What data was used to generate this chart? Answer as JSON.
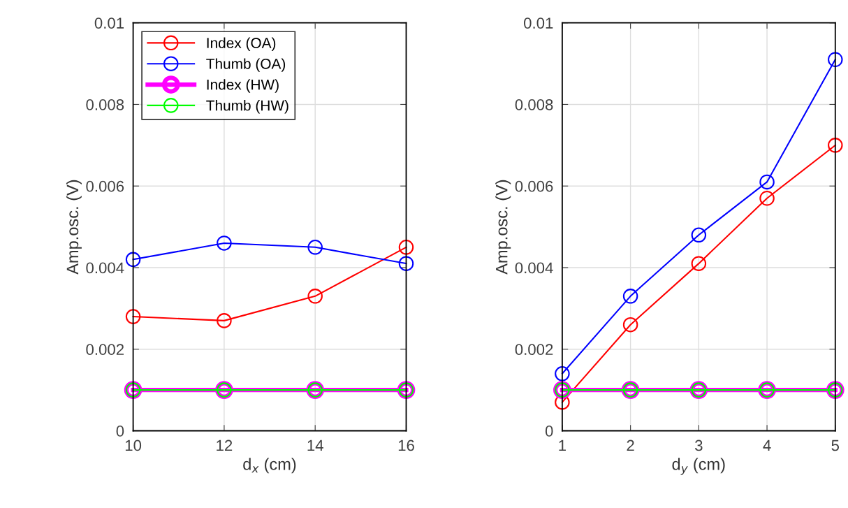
{
  "chart_data": [
    {
      "type": "line",
      "xlabel": "d$_{x}$ (cm)",
      "ylabel": "Amp.osc. (V)",
      "x": [
        10,
        12,
        14,
        16
      ],
      "xlim": [
        10,
        16
      ],
      "xticks": [
        10,
        12,
        14,
        16
      ],
      "ylim": [
        0,
        0.01
      ],
      "yticks": [
        0,
        0.002,
        0.004,
        0.006,
        0.008,
        0.01
      ],
      "grid": true,
      "legend": "top left",
      "marker": "circle",
      "line_style": "solid",
      "series": [
        {
          "name": "Index (OA)",
          "color": "#ff0000",
          "values": [
            0.0028,
            0.0027,
            0.0033,
            0.0045
          ]
        },
        {
          "name": "Thumb (OA)",
          "color": "#0000ff",
          "values": [
            0.0042,
            0.0046,
            0.0045,
            0.0041
          ]
        },
        {
          "name": "Index (HW)",
          "color": "#ff00ff",
          "values": [
            0.001,
            0.001,
            0.001,
            0.001
          ]
        },
        {
          "name": "Thumb (HW)",
          "color": "#00ff00",
          "values": [
            0.001,
            0.001,
            0.001,
            0.001
          ]
        }
      ]
    },
    {
      "type": "line",
      "xlabel": "d$_{y}$ (cm)",
      "ylabel": "Amp.osc. (V)",
      "x": [
        1,
        2,
        3,
        4,
        5
      ],
      "xlim": [
        1,
        5
      ],
      "xticks": [
        1,
        2,
        3,
        4,
        5
      ],
      "ylim": [
        0,
        0.01
      ],
      "yticks": [
        0,
        0.002,
        0.004,
        0.006,
        0.008,
        0.01
      ],
      "grid": true,
      "marker": "circle",
      "line_style": "solid",
      "series": [
        {
          "color": "#ff0000",
          "values": [
            0.0007,
            0.0026,
            0.0041,
            0.0057,
            0.007
          ]
        },
        {
          "color": "#0000ff",
          "values": [
            0.0014,
            0.0033,
            0.0048,
            0.0061,
            0.0091
          ]
        },
        {
          "color": "#ff00ff",
          "values": [
            0.001,
            0.001,
            0.001,
            0.001,
            0.001
          ]
        },
        {
          "color": "#00ff00",
          "values": [
            0.001,
            0.001,
            0.001,
            0.001,
            0.001
          ]
        }
      ]
    }
  ]
}
